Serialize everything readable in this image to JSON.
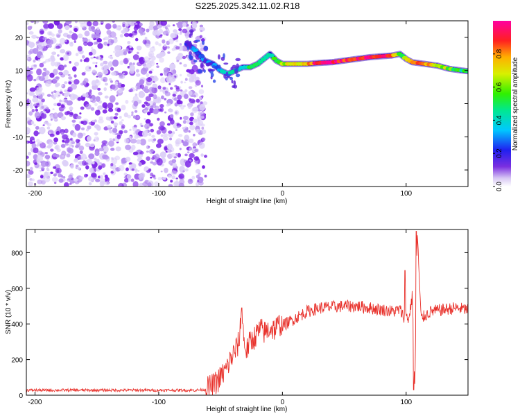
{
  "page": {
    "title": "S225.2025.342.11.02.R18"
  },
  "colors": {
    "snr_line": "#e8302a",
    "axis": "#000000",
    "speckle": "#6a1fd6",
    "background": "#ffffff"
  },
  "chart_data": [
    {
      "type": "heatmap",
      "name": "spectrogram",
      "title": "S225.2025.342.11.02.R18",
      "xlabel": "Height of straight line (km)",
      "ylabel": "Frequency (Hz)",
      "xlim": [
        -207,
        150
      ],
      "ylim": [
        -25,
        25
      ],
      "x_ticks": [
        -200,
        -100,
        0,
        100
      ],
      "y_ticks": [
        -20,
        -10,
        0,
        10,
        20
      ],
      "noise_region": {
        "x_range": [
          -207,
          -62
        ],
        "y_range": [
          -25,
          25
        ]
      },
      "ridge": {
        "x": [
          -77,
          -70,
          -63,
          -56,
          -50,
          -44,
          -38,
          -32,
          -26,
          -20,
          -15,
          -10,
          -5,
          0,
          10,
          20,
          30,
          40,
          50,
          60,
          70,
          80,
          88,
          95,
          100,
          105,
          115,
          125,
          135,
          145,
          150
        ],
        "freq_hz": [
          18,
          16,
          13,
          12,
          10,
          9,
          10,
          11,
          11,
          12,
          13.5,
          15,
          13,
          12,
          12,
          12,
          12.3,
          12.5,
          13,
          13.5,
          14,
          14.3,
          14.5,
          15,
          13.5,
          12.5,
          12,
          11.5,
          10.5,
          10,
          9.8
        ],
        "peak_amplitude": [
          0.25,
          0.25,
          0.3,
          0.3,
          0.35,
          0.35,
          0.4,
          0.45,
          0.5,
          0.55,
          0.5,
          0.45,
          0.5,
          0.6,
          0.7,
          0.8,
          0.92,
          0.95,
          0.9,
          0.9,
          0.92,
          0.95,
          0.9,
          0.5,
          0.6,
          0.85,
          0.8,
          0.7,
          0.6,
          0.5,
          0.5
        ]
      }
    },
    {
      "type": "line",
      "name": "snr",
      "xlabel": "Height of straight line (km)",
      "ylabel": "SNR (10 * v/v)",
      "xlim": [
        -207,
        150
      ],
      "ylim": [
        0,
        930
      ],
      "x_ticks": [
        -200,
        -100,
        0,
        100
      ],
      "y_ticks": [
        0,
        200,
        400,
        600,
        800
      ],
      "series": [
        {
          "name": "SNR",
          "x": [
            -207,
            -180,
            -150,
            -120,
            -90,
            -70,
            -62,
            -55,
            -50,
            -45,
            -42,
            -38,
            -35,
            -33,
            -31,
            -29,
            -26,
            -22,
            -18,
            -14,
            -10,
            -6,
            -2,
            0,
            5,
            10,
            15,
            20,
            25,
            30,
            40,
            50,
            60,
            70,
            80,
            90,
            95,
            98,
            100,
            102,
            105,
            107,
            109,
            112,
            120,
            130,
            140,
            150
          ],
          "y": [
            28,
            28,
            28,
            28,
            28,
            28,
            32,
            60,
            100,
            150,
            200,
            250,
            300,
            480,
            300,
            250,
            300,
            330,
            370,
            350,
            380,
            370,
            400,
            390,
            410,
            430,
            450,
            470,
            480,
            490,
            495,
            500,
            500,
            490,
            480,
            470,
            480,
            440,
            460,
            420,
            560,
            30,
            920,
            430,
            470,
            480,
            490,
            480
          ],
          "spikes": [
            {
              "x": -33,
              "y": 490
            },
            {
              "x": 99,
              "y": 700
            },
            {
              "x": 106,
              "y": 30
            },
            {
              "x": 108,
              "y": 920
            }
          ]
        }
      ]
    },
    {
      "type": "colorbar",
      "name": "amplitude-colorbar",
      "label": "Normalized spectral amplitude",
      "range": [
        0,
        1
      ],
      "ticks": [
        0,
        0.2,
        0.4,
        0.6,
        0.8
      ],
      "tick_labels": [
        "0.0",
        "0.2",
        "0.4",
        "0.6",
        "0.8"
      ]
    }
  ]
}
